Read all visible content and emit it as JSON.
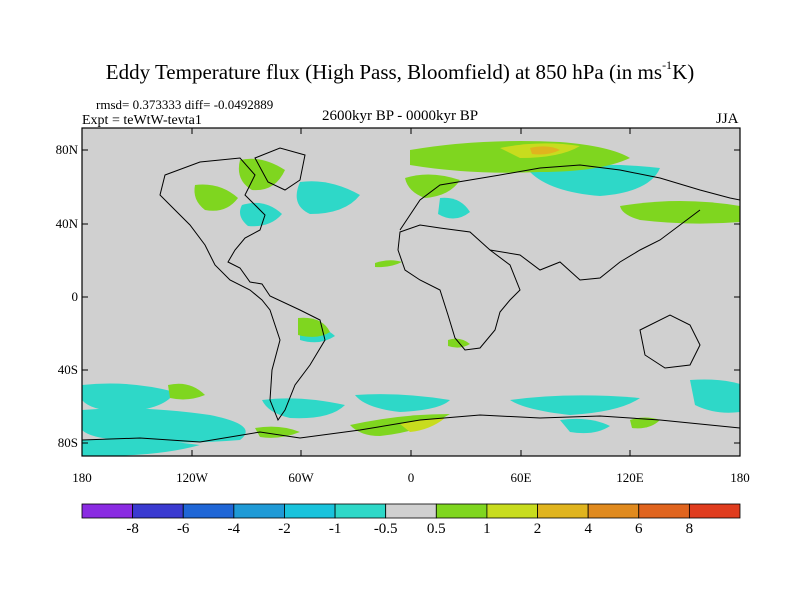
{
  "title": {
    "main": "Eddy Temperature flux (High Pass, Bloomfield) at 850 hPa (in ms",
    "sup": "-1",
    "end": "K)"
  },
  "subtitle": {
    "rmsd_line": "rmsd= 0.373333 diff= -0.0492889",
    "expt_line": "Expt = teWtW-tevta1",
    "period": "2600kyr BP - 0000kyr BP",
    "season": "JJA"
  },
  "axes": {
    "y_ticks": [
      "80N",
      "40N",
      "0",
      "40S",
      "80S"
    ],
    "x_ticks": [
      "180",
      "120W",
      "60W",
      "0",
      "60E",
      "120E",
      "180"
    ]
  },
  "colorbar": {
    "labels": [
      "-8",
      "-6",
      "-4",
      "-2",
      "-1",
      "-0.5",
      "0.5",
      "1",
      "2",
      "4",
      "6",
      "8"
    ],
    "colors": [
      "#8a2be2",
      "#3a3ad0",
      "#1f66d6",
      "#1f9ad6",
      "#19c3dc",
      "#2ed8c8",
      "#d0d0d0",
      "#7fd61f",
      "#c8dc1e",
      "#e0b41e",
      "#e08a1e",
      "#e0641e",
      "#e03c1e"
    ]
  },
  "map": {
    "background": "#d0d0d0",
    "coast": "#000000"
  }
}
